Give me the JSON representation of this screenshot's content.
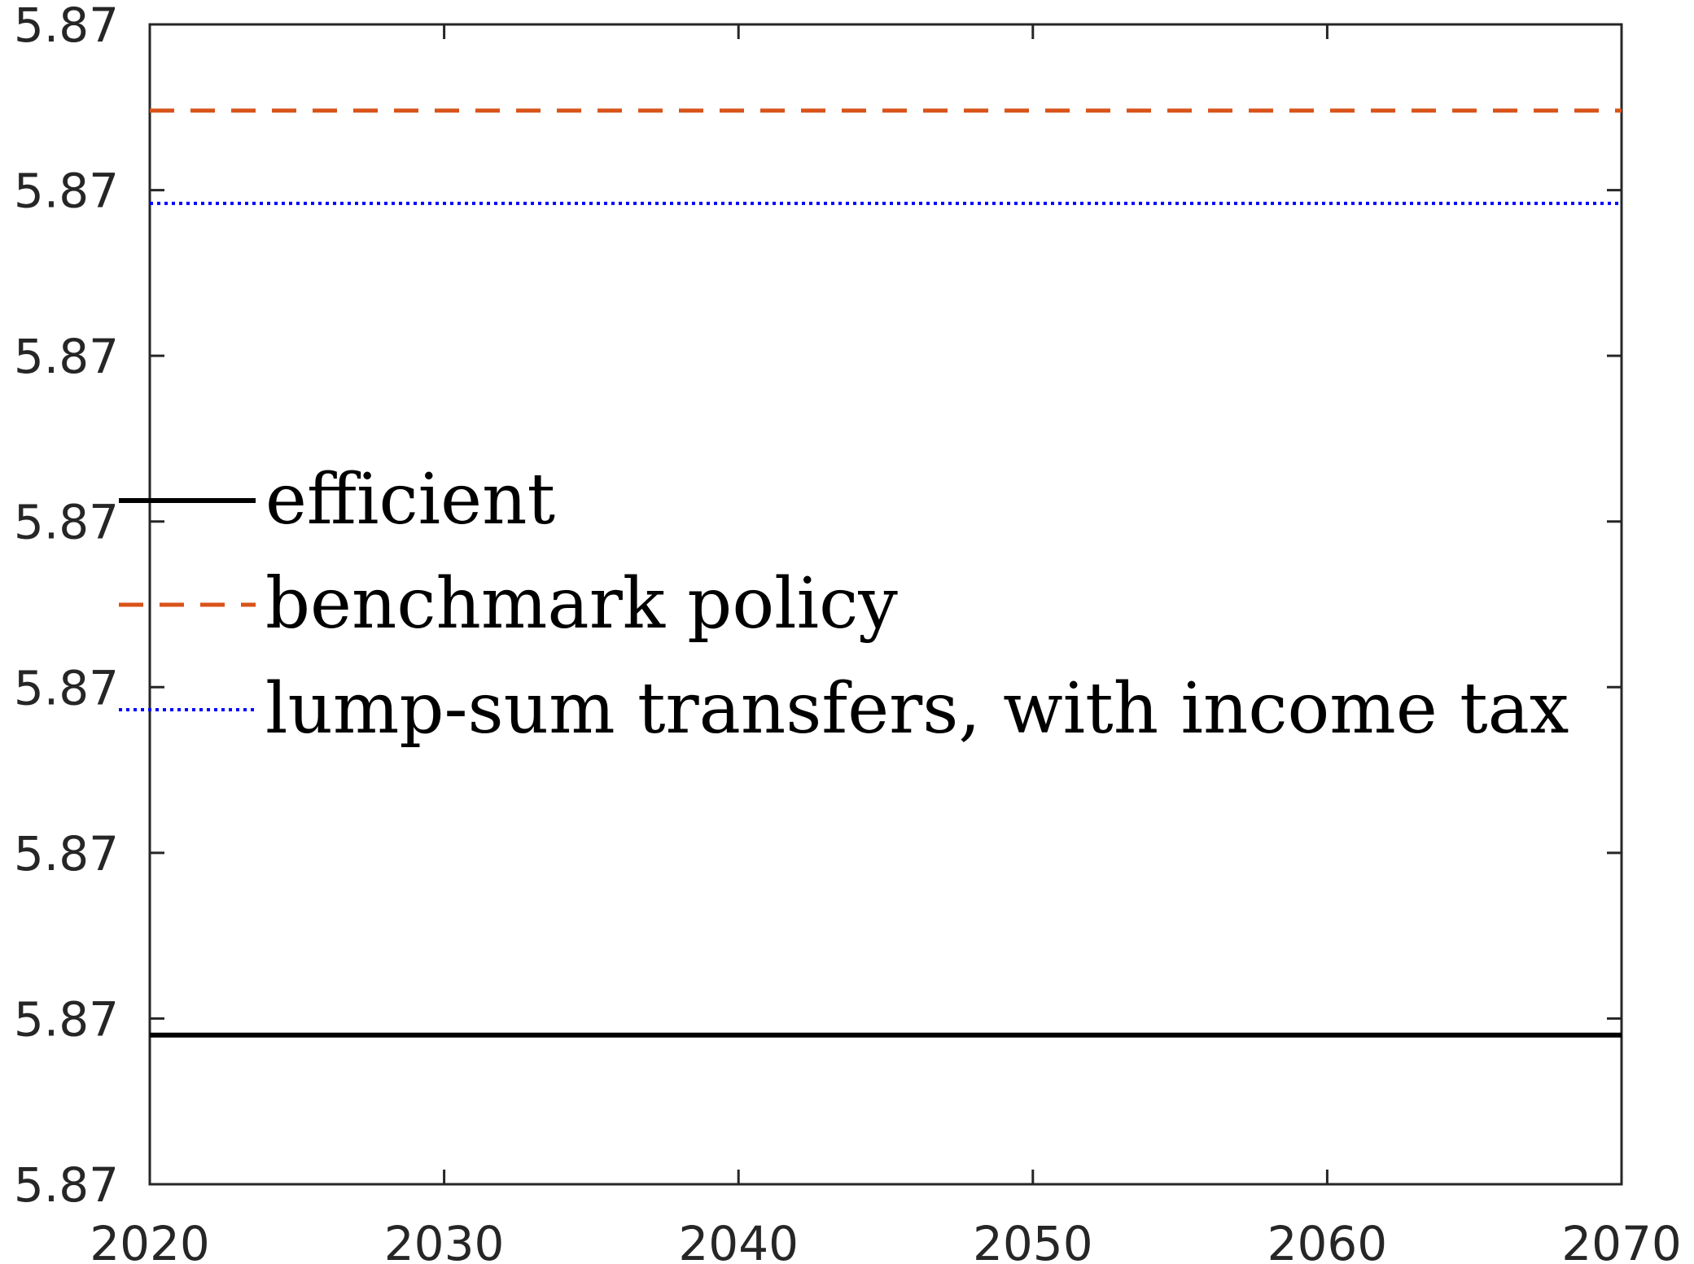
{
  "chart_data": {
    "type": "line",
    "x": [
      2020,
      2070
    ],
    "xlim": [
      2020,
      2070
    ],
    "xticks": [
      "2020",
      "2030",
      "2040",
      "2050",
      "2060",
      "2070"
    ],
    "yticks": [
      "5.87",
      "5.87",
      "5.87",
      "5.87",
      "5.87",
      "5.87",
      "5.87",
      "5.87"
    ],
    "ylim_tick_index": [
      0,
      7
    ],
    "grid": false,
    "legend_position": "middle-left",
    "series": [
      {
        "name": "efficient",
        "level_tick_index": 0.9,
        "style": "solid",
        "color": "#000000"
      },
      {
        "name": "benchmark policy",
        "level_tick_index": 6.48,
        "style": "dashed",
        "color": "#D95319"
      },
      {
        "name": "lump-sum transfers, with income tax",
        "level_tick_index": 5.92,
        "style": "dotted",
        "color": "#0000FF"
      }
    ]
  }
}
